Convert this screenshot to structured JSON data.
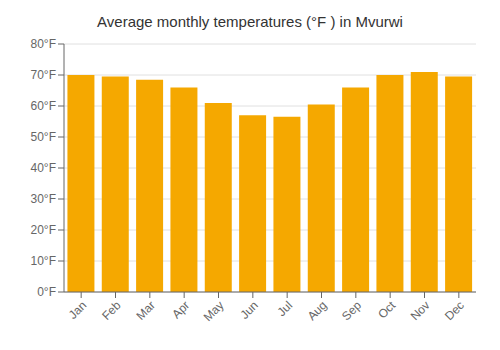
{
  "chart_data": {
    "type": "bar",
    "title": "Average monthly temperatures (°F ) in Mvurwi",
    "categories": [
      "Jan",
      "Feb",
      "Mar",
      "Apr",
      "May",
      "Jun",
      "Jul",
      "Aug",
      "Sep",
      "Oct",
      "Nov",
      "Dec"
    ],
    "values": [
      70,
      69.5,
      68.5,
      66,
      61,
      57,
      56.5,
      60.5,
      66,
      70,
      71,
      69.5
    ],
    "color": "#F5A800",
    "ylim": [
      0,
      80
    ],
    "yticks": [
      {
        "value": 0,
        "label": "0°F"
      },
      {
        "value": 10,
        "label": "10°F"
      },
      {
        "value": 20,
        "label": "20°F"
      },
      {
        "value": 30,
        "label": "30°F"
      },
      {
        "value": 40,
        "label": "40°F"
      },
      {
        "value": 50,
        "label": "50°F"
      },
      {
        "value": 60,
        "label": "60°F"
      },
      {
        "value": 70,
        "label": "70°F"
      },
      {
        "value": 80,
        "label": "80°F"
      }
    ],
    "grid": true
  }
}
